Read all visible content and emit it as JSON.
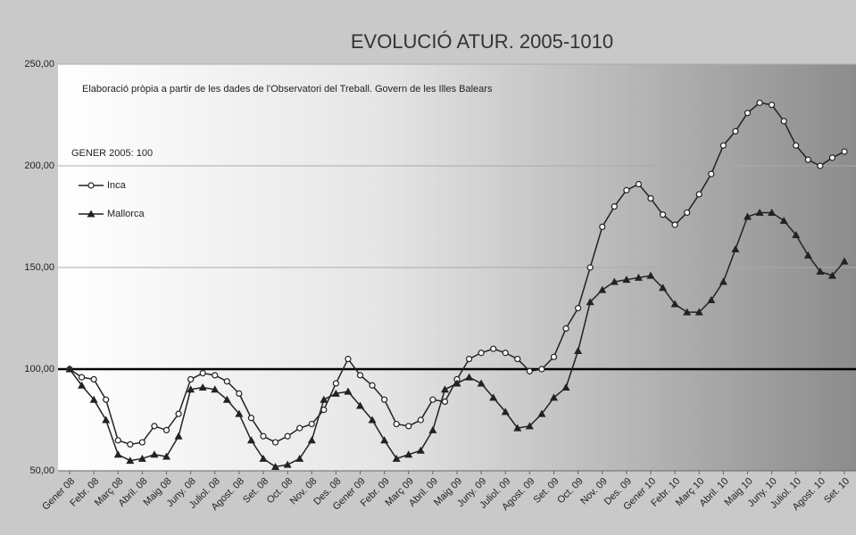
{
  "chart_data": {
    "type": "line",
    "title": "EVOLUCIÓ ATUR. 2005-1010",
    "subtitle": "Elaboració pròpia a partir de les dades de l'Observatori del Treball. Govern de les Illes Balears",
    "annotation": "GENER 2005: 100",
    "reference_line": 100,
    "categories": [
      "Gener 08",
      null,
      "Febr. 08",
      null,
      "Març 08",
      null,
      "Abril. 08",
      null,
      "Maig 08",
      null,
      "Juny. 08",
      null,
      "Juliol. 08",
      null,
      "Agost. 08",
      null,
      "Set. 08",
      null,
      "Oct. 08",
      null,
      "Nov. 08",
      null,
      "Des. 08",
      null,
      "Gener 09",
      null,
      "Febr. 09",
      null,
      "Març 09",
      null,
      "Abril. 09",
      null,
      "Maig 09",
      null,
      "Juny. 09",
      null,
      "Juliol. 09",
      null,
      "Agost. 09",
      null,
      "Set. 09",
      null,
      "Oct. 09",
      null,
      "Nov. 09",
      null,
      "Des. 09",
      null,
      "Gener 10",
      null,
      "Febr. 10",
      null,
      "Març 10",
      null,
      "Abril. 10",
      null,
      "Maig 10",
      null,
      "Juny. 10",
      null,
      "Juliol. 10",
      null,
      "Agost. 10",
      null,
      "Set. 10"
    ],
    "series": [
      {
        "name": "Inca",
        "color": "#222222",
        "marker": "circle",
        "values": [
          100,
          96,
          95,
          85,
          65,
          63,
          64,
          72,
          70,
          78,
          95,
          98,
          97,
          94,
          88,
          76,
          67,
          64,
          67,
          71,
          73,
          80,
          93,
          105,
          97,
          92,
          85,
          73,
          72,
          75,
          85,
          84,
          95,
          105,
          108,
          110,
          108,
          105,
          99,
          100,
          106,
          120,
          130,
          150,
          170,
          180,
          188,
          191,
          184,
          176,
          171,
          177,
          186,
          196,
          210,
          217,
          226,
          231,
          230,
          222,
          210,
          203,
          200,
          204,
          207
        ]
      },
      {
        "name": "Mallorca",
        "color": "#222222",
        "marker": "triangle",
        "values": [
          100,
          92,
          85,
          75,
          58,
          55,
          56,
          58,
          57,
          67,
          90,
          91,
          90,
          85,
          78,
          65,
          56,
          52,
          53,
          56,
          65,
          85,
          88,
          89,
          82,
          75,
          65,
          56,
          58,
          60,
          70,
          90,
          93,
          96,
          93,
          86,
          79,
          71,
          72,
          78,
          86,
          91,
          109,
          133,
          139,
          143,
          144,
          145,
          146,
          140,
          132,
          128,
          128,
          134,
          143,
          159,
          175,
          177,
          177,
          173,
          166,
          156,
          148,
          146,
          153
        ]
      }
    ],
    "ylim": [
      50,
      250
    ],
    "yticks": [
      {
        "value": 50,
        "label": "50,00"
      },
      {
        "value": 100,
        "label": "100,00"
      },
      {
        "value": 150,
        "label": "150,00"
      },
      {
        "value": 200,
        "label": "200,00"
      },
      {
        "value": 250,
        "label": "250,00"
      }
    ],
    "grid": true,
    "legend": "upper left"
  }
}
